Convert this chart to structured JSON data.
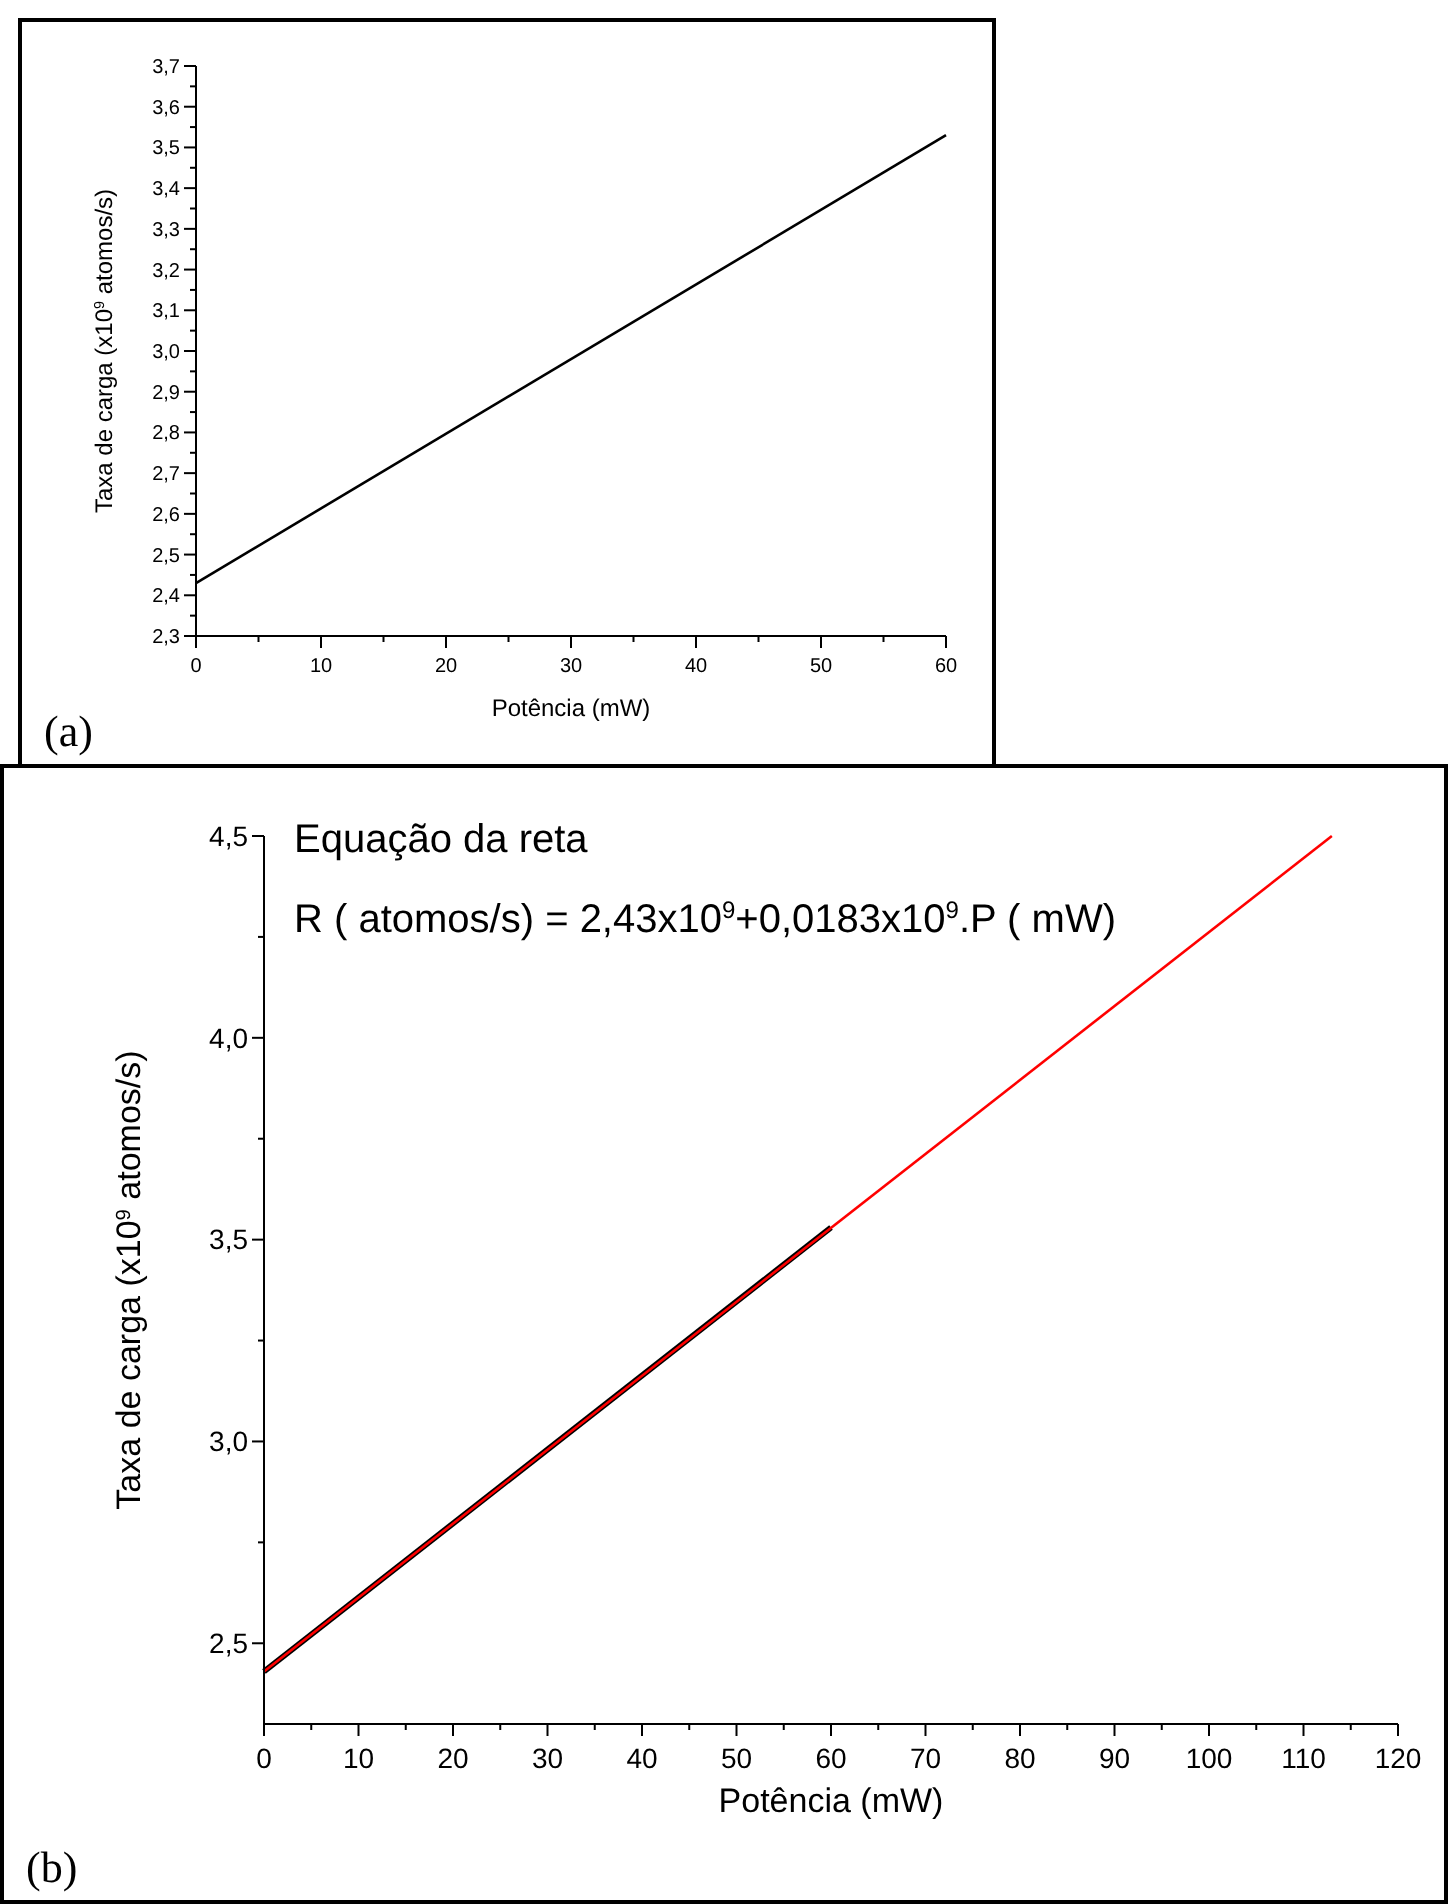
{
  "chart_data": [
    {
      "type": "line",
      "xlabel": "Potência (mW)",
      "ylabel": "Taxa de carga (x10$^{9}$ atomos/s)",
      "annotations": [
        "(a)"
      ],
      "x": [
        0,
        60
      ],
      "series": [
        {
          "color": "#000000",
          "values": [
            2.43,
            3.53
          ]
        }
      ],
      "xlim": [
        0,
        60
      ],
      "ylim": [
        2.3,
        3.7
      ],
      "xticks": [
        0,
        {
          "value": 5,
          "label": null
        },
        10,
        {
          "value": 15,
          "label": null
        },
        20,
        {
          "value": 25,
          "label": null
        },
        30,
        {
          "value": 35,
          "label": null
        },
        40,
        {
          "value": 45,
          "label": null
        },
        50,
        {
          "value": 55,
          "label": null
        },
        60
      ],
      "yticks": [
        {
          "value": 2.3,
          "label": "2,3"
        },
        {
          "value": 2.35,
          "label": null
        },
        {
          "value": 2.4,
          "label": "2,4"
        },
        {
          "value": 2.45,
          "label": null
        },
        {
          "value": 2.5,
          "label": "2,5"
        },
        {
          "value": 2.55,
          "label": null
        },
        {
          "value": 2.6,
          "label": "2,6"
        },
        {
          "value": 2.65,
          "label": null
        },
        {
          "value": 2.7,
          "label": "2,7"
        },
        {
          "value": 2.75,
          "label": null
        },
        {
          "value": 2.8,
          "label": "2,8"
        },
        {
          "value": 2.85,
          "label": null
        },
        {
          "value": 2.9,
          "label": "2,9"
        },
        {
          "value": 2.95,
          "label": null
        },
        {
          "value": 3.0,
          "label": "3,0"
        },
        {
          "value": 3.05,
          "label": null
        },
        {
          "value": 3.1,
          "label": "3,1"
        },
        {
          "value": 3.15,
          "label": null
        },
        {
          "value": 3.2,
          "label": "3,2"
        },
        {
          "value": 3.25,
          "label": null
        },
        {
          "value": 3.3,
          "label": "3,3"
        },
        {
          "value": 3.35,
          "label": null
        },
        {
          "value": 3.4,
          "label": "3,4"
        },
        {
          "value": 3.45,
          "label": null
        },
        {
          "value": 3.5,
          "label": "3,5"
        },
        {
          "value": 3.55,
          "label": null
        },
        {
          "value": 3.6,
          "label": "3,6"
        },
        {
          "value": 3.65,
          "label": null
        },
        {
          "value": 3.7,
          "label": "3,7"
        }
      ],
      "grid": false
    },
    {
      "type": "line",
      "xlabel": "Potência (mW)",
      "ylabel": "Taxa de carga (x10$^{9}$ atomos/s)",
      "annotations": [
        "Equação da reta",
        "R ( atomos/s)   = 2,43x10$^{9}$+0,0183x10$^{9}$.P ( mW)",
        "(b)"
      ],
      "series": [
        {
          "color": "#000000",
          "x": [
            0,
            60
          ],
          "values": [
            2.43,
            3.53
          ]
        },
        {
          "color": "#ff0000",
          "x": [
            0,
            113
          ],
          "values": [
            2.43,
            4.5
          ]
        }
      ],
      "xlim": [
        0,
        120
      ],
      "ylim": [
        2.3,
        4.5
      ],
      "xticks": [
        0,
        {
          "value": 5,
          "label": null
        },
        10,
        {
          "value": 15,
          "label": null
        },
        20,
        {
          "value": 25,
          "label": null
        },
        30,
        {
          "value": 35,
          "label": null
        },
        40,
        {
          "value": 45,
          "label": null
        },
        50,
        {
          "value": 55,
          "label": null
        },
        60,
        {
          "value": 65,
          "label": null
        },
        70,
        {
          "value": 75,
          "label": null
        },
        80,
        {
          "value": 85,
          "label": null
        },
        90,
        {
          "value": 95,
          "label": null
        },
        100,
        {
          "value": 105,
          "label": null
        },
        110,
        {
          "value": 115,
          "label": null
        },
        120
      ],
      "yticks": [
        {
          "value": 2.5,
          "label": "2,5"
        },
        {
          "value": 2.75,
          "label": null
        },
        {
          "value": 3.0,
          "label": "3,0"
        },
        {
          "value": 3.25,
          "label": null
        },
        {
          "value": 3.5,
          "label": "3,5"
        },
        {
          "value": 3.75,
          "label": null
        },
        {
          "value": 4.0,
          "label": "4,0"
        },
        {
          "value": 4.25,
          "label": null
        },
        {
          "value": 4.5,
          "label": "4,5"
        }
      ],
      "grid": false
    }
  ]
}
